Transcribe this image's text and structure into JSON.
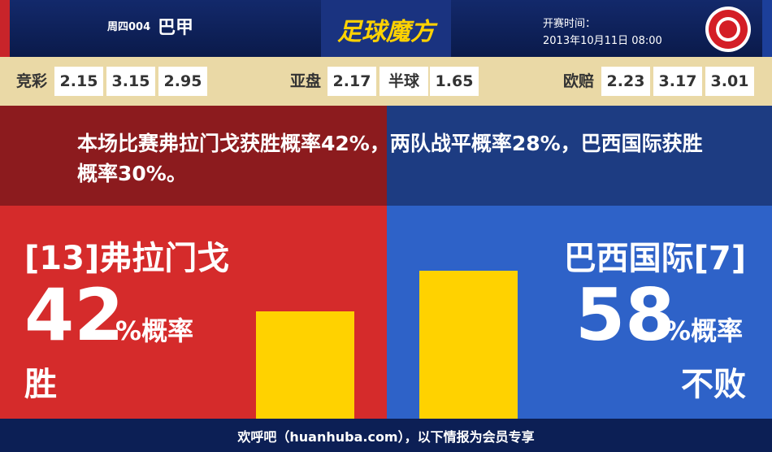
{
  "header": {
    "match_no": "周四004",
    "league": "巴甲",
    "logo": "足球魔方",
    "time_label": "开赛时间：",
    "time": "2013年10月11日 08:00"
  },
  "odds": [
    {
      "label": "竞彩",
      "values": [
        "2.15",
        "3.15",
        "2.95"
      ]
    },
    {
      "label": "亚盘",
      "values": [
        "2.17",
        "半球",
        "1.65"
      ]
    },
    {
      "label": "欧赔",
      "values": [
        "2.23",
        "3.17",
        "3.01"
      ]
    }
  ],
  "summary": "本场比赛弗拉门戈获胜概率42%，两队战平概率28%，巴西国际获胜概率30%。",
  "home": {
    "name": "[13]弗拉门戈",
    "value": 42,
    "unit": "%概率",
    "outcome": "胜"
  },
  "away": {
    "name": "巴西国际[7]",
    "value": 58,
    "unit": "%概率",
    "outcome": "不败"
  },
  "footer": "欢呼吧（huanhuba.com），以下情报为会员专享"
}
